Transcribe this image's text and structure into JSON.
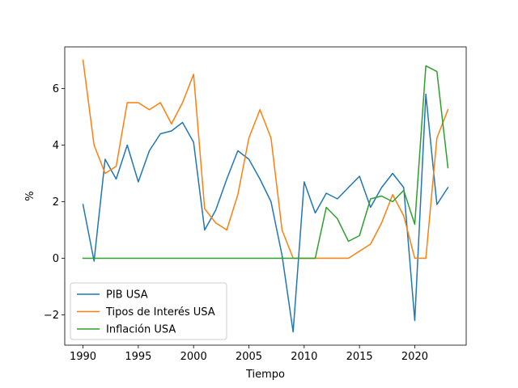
{
  "chart_data": {
    "type": "line",
    "title": "",
    "xlabel": "Tiempo",
    "ylabel": "%",
    "xlim": [
      1988.35,
      2024.65
    ],
    "ylim": [
      -3.07,
      7.47
    ],
    "xticks": [
      1990,
      1995,
      2000,
      2005,
      2010,
      2015,
      2020
    ],
    "yticks": [
      -2,
      0,
      2,
      4,
      6
    ],
    "ytick_labels": [
      "−2",
      "0",
      "2",
      "4",
      "6"
    ],
    "grid": false,
    "legend_position": "lower-left",
    "x": [
      1990,
      1991,
      1992,
      1993,
      1994,
      1995,
      1996,
      1997,
      1998,
      1999,
      2000,
      2001,
      2002,
      2003,
      2004,
      2005,
      2006,
      2007,
      2008,
      2009,
      2010,
      2011,
      2012,
      2013,
      2014,
      2015,
      2016,
      2017,
      2018,
      2019,
      2020,
      2021,
      2022,
      2023
    ],
    "series": [
      {
        "name": "PIB USA",
        "color": "#1f77b4",
        "values": [
          1.9,
          -0.1,
          3.5,
          2.8,
          4.0,
          2.7,
          3.8,
          4.4,
          4.5,
          4.8,
          4.1,
          1.0,
          1.7,
          2.8,
          3.8,
          3.5,
          2.8,
          2.0,
          0.1,
          -2.6,
          2.7,
          1.6,
          2.3,
          2.1,
          2.5,
          2.9,
          1.8,
          2.5,
          3.0,
          2.5,
          -2.2,
          5.8,
          1.9,
          2.5
        ]
      },
      {
        "name": "Tipos de Interés USA",
        "color": "#ff7f0e",
        "values": [
          7.0,
          4.0,
          3.0,
          3.25,
          5.5,
          5.5,
          5.25,
          5.5,
          4.75,
          5.5,
          6.5,
          1.75,
          1.25,
          1.0,
          2.25,
          4.25,
          5.25,
          4.25,
          1.0,
          0.0,
          0.0,
          0.0,
          0.0,
          0.0,
          0.0,
          0.25,
          0.5,
          1.25,
          2.25,
          1.5,
          0.0,
          0.0,
          4.25,
          5.25
        ]
      },
      {
        "name": "Inflación USA",
        "color": "#2ca02c",
        "values": [
          0,
          0,
          0,
          0,
          0,
          0,
          0,
          0,
          0,
          0,
          0,
          0,
          0,
          0,
          0,
          0,
          0,
          0,
          0,
          0,
          0,
          0,
          1.8,
          1.4,
          0.6,
          0.8,
          2.1,
          2.2,
          2.0,
          2.4,
          1.2,
          6.8,
          6.6,
          3.2
        ]
      }
    ]
  }
}
